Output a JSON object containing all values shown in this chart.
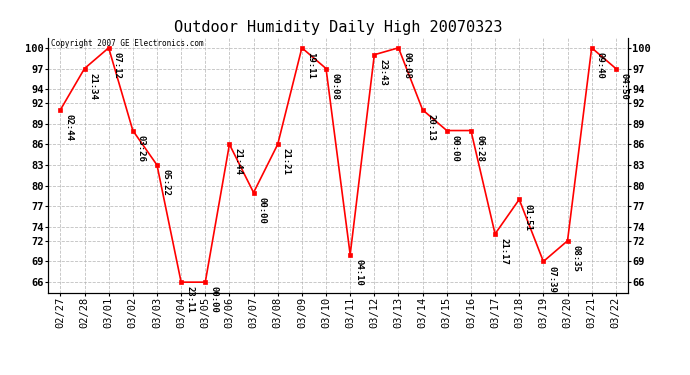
{
  "title": "Outdoor Humidity Daily High 20070323",
  "copyright": "Copyright 2007 GE Electronics.com",
  "x_labels": [
    "02/27",
    "02/28",
    "03/01",
    "03/02",
    "03/03",
    "03/04",
    "03/05",
    "03/06",
    "03/07",
    "03/08",
    "03/09",
    "03/10",
    "03/11",
    "03/12",
    "03/13",
    "03/14",
    "03/15",
    "03/16",
    "03/17",
    "03/18",
    "03/19",
    "03/20",
    "03/21",
    "03/22"
  ],
  "y_values": [
    91,
    97,
    100,
    88,
    83,
    66,
    66,
    86,
    79,
    86,
    100,
    97,
    70,
    99,
    100,
    91,
    88,
    88,
    73,
    78,
    69,
    72,
    100,
    97
  ],
  "annotations": [
    "02:44",
    "21:34",
    "07:12",
    "03:26",
    "05:22",
    "23:11",
    "00:00",
    "21:44",
    "00:00",
    "21:21",
    "19:11",
    "00:08",
    "04:10",
    "23:43",
    "00:08",
    "20:13",
    "00:00",
    "06:28",
    "21:17",
    "01:51",
    "07:39",
    "08:35",
    "09:40",
    "04:50"
  ],
  "line_color": "#ff0000",
  "marker_color": "#ff0000",
  "background_color": "#ffffff",
  "grid_color": "#b0b0b0",
  "ylim": [
    64.5,
    101.5
  ],
  "yticks": [
    66,
    69,
    72,
    74,
    77,
    80,
    83,
    86,
    89,
    92,
    94,
    97,
    100
  ],
  "title_fontsize": 11,
  "annot_fontsize": 6.5,
  "tick_fontsize": 7.5
}
